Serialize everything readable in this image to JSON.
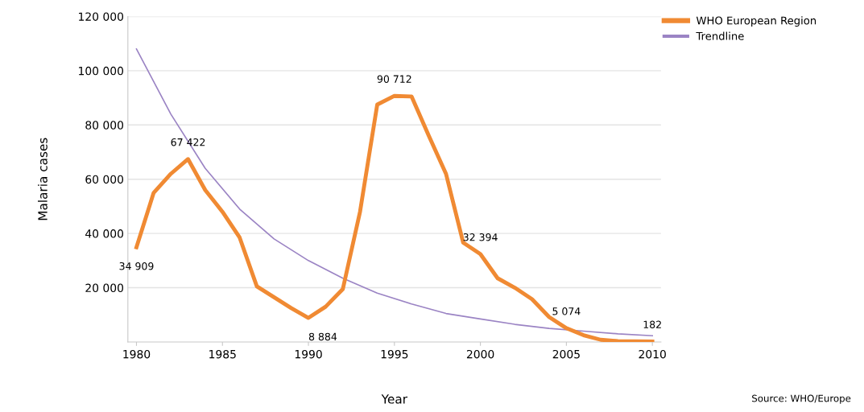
{
  "chart_data": {
    "type": "line",
    "xlabel": "Year",
    "ylabel": "Malaria cases",
    "xlim": [
      1979.5,
      2010.5
    ],
    "xticks": [
      1980,
      1985,
      1990,
      1995,
      2000,
      2005,
      2010
    ],
    "ylim": [
      0,
      120000
    ],
    "yticks": [
      {
        "value": 20000,
        "label": "20 000"
      },
      {
        "value": 40000,
        "label": "40 000"
      },
      {
        "value": 60000,
        "label": "60 000"
      },
      {
        "value": 80000,
        "label": "80 000"
      },
      {
        "value": 100000,
        "label": "100 000"
      },
      {
        "value": 120000,
        "label": "120 000"
      }
    ],
    "grid": "y",
    "legend": "top right",
    "marker": "none",
    "line_style": "solid",
    "series": [
      {
        "name": "WHO European Region",
        "color": "#f08a33",
        "x": [
          1980,
          1981,
          1982,
          1983,
          1984,
          1985,
          1986,
          1987,
          1988,
          1989,
          1990,
          1991,
          1992,
          1993,
          1994,
          1995,
          1996,
          1997,
          1998,
          1999,
          2000,
          2001,
          2002,
          2003,
          2004,
          2005,
          2006,
          2007,
          2008,
          2009,
          2010
        ],
        "values": [
          34909,
          55000,
          62000,
          67422,
          56000,
          48000,
          38500,
          20500,
          16500,
          12500,
          8884,
          13000,
          19500,
          48000,
          87500,
          90712,
          90500,
          76000,
          62000,
          36600,
          32394,
          23500,
          20000,
          15800,
          9200,
          5074,
          2500,
          800,
          300,
          200,
          182
        ],
        "value_labels": [
          "34 909",
          null,
          null,
          "67 422",
          null,
          null,
          null,
          null,
          null,
          null,
          "8 884",
          null,
          null,
          null,
          null,
          "90 712",
          null,
          null,
          null,
          null,
          "32 394",
          null,
          null,
          null,
          null,
          "5 074",
          null,
          null,
          null,
          null,
          "182"
        ]
      },
      {
        "name": "Trendline",
        "color": "#9b84c4",
        "x": [
          1980,
          1982,
          1984,
          1986,
          1988,
          1990,
          1992,
          1994,
          1996,
          1998,
          2000,
          2002,
          2004,
          2006,
          2008,
          2010
        ],
        "values": [
          108000,
          84000,
          64000,
          49000,
          38000,
          30000,
          23500,
          18000,
          14000,
          10500,
          8500,
          6500,
          5000,
          4000,
          3000,
          2300
        ]
      }
    ],
    "annotations": [
      "Source: WHO/Europe"
    ]
  }
}
